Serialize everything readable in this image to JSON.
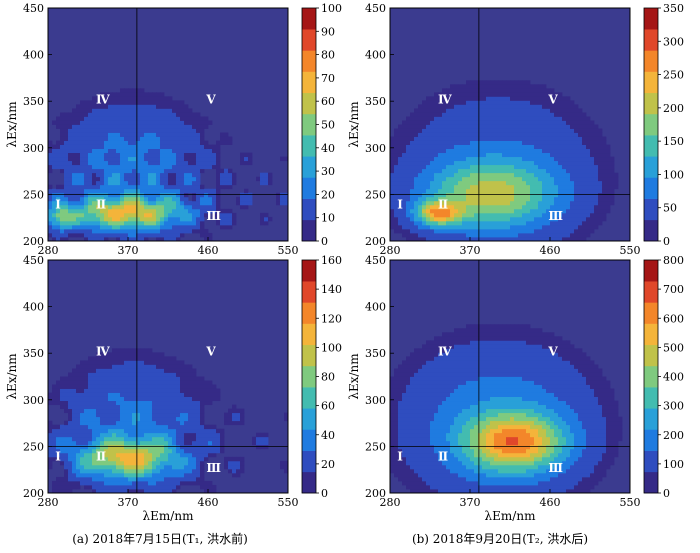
{
  "figure": {
    "captions": [
      "(a)  2018年7月15日(T₁, 洪水前)",
      "(b)  2018年9月20日(T₂, 洪水后)"
    ],
    "colors": {
      "low": "#3b3b8f",
      "mid": "#35b4c9",
      "high": "#f0d52a",
      "peak": "#b51c1c"
    }
  },
  "chart_data": [
    {
      "type": "heatmap",
      "panel": "top-left",
      "x": [
        280,
        550
      ],
      "y": [
        200,
        450
      ],
      "xticks": [
        "280",
        "370",
        "460",
        "550"
      ],
      "yticks": [
        "200",
        "250",
        "300",
        "350",
        "400",
        "450"
      ],
      "xlabel": "",
      "ylabel": "λEx/nm",
      "colorbar": {
        "min": 0,
        "max": 100,
        "ticks": [
          "0",
          "10",
          "20",
          "30",
          "40",
          "50",
          "60",
          "70",
          "80",
          "90",
          "100"
        ]
      },
      "regions": [
        "Ⅰ",
        "Ⅱ",
        "Ⅲ",
        "Ⅳ",
        "Ⅴ"
      ],
      "divisions": {
        "x": 380,
        "y": 250
      }
    },
    {
      "type": "heatmap",
      "panel": "top-right",
      "x": [
        280,
        550
      ],
      "y": [
        200,
        450
      ],
      "xticks": [
        "280",
        "370",
        "460",
        "550"
      ],
      "yticks": [
        "200",
        "250",
        "300",
        "350",
        "400",
        "450"
      ],
      "xlabel": "",
      "ylabel": "λEx/nm",
      "colorbar": {
        "min": 0,
        "max": 350,
        "ticks": [
          "0",
          "50",
          "100",
          "150",
          "200",
          "250",
          "300",
          "350"
        ]
      },
      "regions": [
        "Ⅰ",
        "Ⅱ",
        "Ⅲ",
        "Ⅳ",
        "Ⅴ"
      ],
      "divisions": {
        "x": 380,
        "y": 250
      }
    },
    {
      "type": "heatmap",
      "panel": "bottom-left",
      "x": [
        280,
        550
      ],
      "y": [
        200,
        450
      ],
      "xticks": [
        "280",
        "370",
        "460",
        "550"
      ],
      "yticks": [
        "200",
        "250",
        "300",
        "350",
        "400",
        "450"
      ],
      "xlabel": "λEm/nm",
      "ylabel": "λEx/nm",
      "colorbar": {
        "min": 0,
        "max": 160,
        "ticks": [
          "0",
          "20",
          "40",
          "60",
          "80",
          "100",
          "120",
          "140",
          "160"
        ]
      },
      "regions": [
        "Ⅰ",
        "Ⅱ",
        "Ⅲ",
        "Ⅳ",
        "Ⅴ"
      ],
      "divisions": {
        "x": 380,
        "y": 250
      }
    },
    {
      "type": "heatmap",
      "panel": "bottom-right",
      "x": [
        280,
        550
      ],
      "y": [
        200,
        450
      ],
      "xticks": [
        "280",
        "370",
        "460",
        "550"
      ],
      "yticks": [
        "200",
        "250",
        "300",
        "350",
        "400",
        "450"
      ],
      "xlabel": "λEm/nm",
      "ylabel": "λEx/nm",
      "colorbar": {
        "min": 0,
        "max": 800,
        "ticks": [
          "0",
          "100",
          "200",
          "300",
          "400",
          "500",
          "600",
          "700",
          "800"
        ]
      },
      "regions": [
        "Ⅰ",
        "Ⅱ",
        "Ⅲ",
        "Ⅳ",
        "Ⅴ"
      ],
      "divisions": {
        "x": 380,
        "y": 250
      }
    }
  ]
}
